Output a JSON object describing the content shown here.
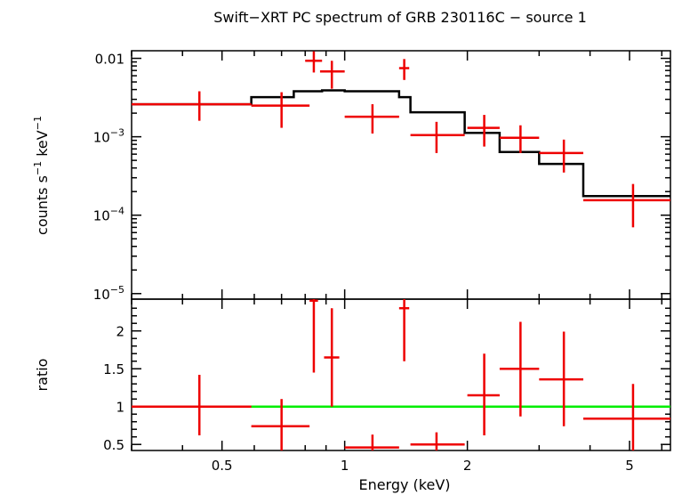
{
  "chart_data": [
    {
      "type": "scatter",
      "panel": "spectrum",
      "title": "Swift−XRT PC spectrum of GRB 230116C − source 1",
      "ylabel_parts": [
        "counts s",
        "−1",
        " keV",
        "−1"
      ],
      "xlabel": "Energy (keV)",
      "xscale": "log",
      "yscale": "log",
      "xlim": [
        0.3,
        6.3
      ],
      "ylim": [
        8.5e-06,
        0.0125
      ],
      "ytick_labels": [
        {
          "value": 0.01,
          "base": "0.01",
          "exp": ""
        },
        {
          "value": 0.001,
          "base": "10",
          "exp": "−3"
        },
        {
          "value": 0.0001,
          "base": "10",
          "exp": "−4"
        },
        {
          "value": 1e-05,
          "base": "10",
          "exp": "−5"
        }
      ],
      "data_points": [
        {
          "x": 0.44,
          "xlo": 0.3,
          "xhi": 0.59,
          "y": 0.0026,
          "ylo": 0.0016,
          "yhi": 0.0038
        },
        {
          "x": 0.7,
          "xlo": 0.59,
          "xhi": 0.82,
          "y": 0.0025,
          "ylo": 0.0013,
          "yhi": 0.0037
        },
        {
          "x": 0.84,
          "xlo": 0.8,
          "xhi": 0.88,
          "y": 0.0093,
          "ylo": 0.0066,
          "yhi": 0.0123
        },
        {
          "x": 0.93,
          "xlo": 0.87,
          "xhi": 1.0,
          "y": 0.0068,
          "ylo": 0.0041,
          "yhi": 0.0093
        },
        {
          "x": 1.17,
          "xlo": 1.0,
          "xhi": 1.36,
          "y": 0.0018,
          "ylo": 0.0011,
          "yhi": 0.0026
        },
        {
          "x": 1.4,
          "xlo": 1.36,
          "xhi": 1.44,
          "y": 0.0075,
          "ylo": 0.0053,
          "yhi": 0.0098
        },
        {
          "x": 1.68,
          "xlo": 1.45,
          "xhi": 1.97,
          "y": 0.00105,
          "ylo": 0.00062,
          "yhi": 0.00155
        },
        {
          "x": 2.2,
          "xlo": 2.0,
          "xhi": 2.4,
          "y": 0.0013,
          "ylo": 0.00075,
          "yhi": 0.0019
        },
        {
          "x": 2.7,
          "xlo": 2.4,
          "xhi": 3.0,
          "y": 0.00097,
          "ylo": 0.00062,
          "yhi": 0.0014
        },
        {
          "x": 3.45,
          "xlo": 3.0,
          "xhi": 3.85,
          "y": 0.00062,
          "ylo": 0.00035,
          "yhi": 0.00092
        },
        {
          "x": 5.1,
          "xlo": 3.85,
          "xhi": 6.3,
          "y": 0.000155,
          "ylo": 7e-05,
          "yhi": 0.00025
        }
      ],
      "model_step": [
        {
          "xlo": 0.3,
          "xhi": 0.59,
          "y": 0.0026
        },
        {
          "xlo": 0.59,
          "xhi": 0.75,
          "y": 0.0032
        },
        {
          "xlo": 0.75,
          "xhi": 0.88,
          "y": 0.0038
        },
        {
          "xlo": 0.88,
          "xhi": 1.0,
          "y": 0.0039
        },
        {
          "xlo": 1.0,
          "xhi": 1.36,
          "y": 0.0038
        },
        {
          "xlo": 1.36,
          "xhi": 1.45,
          "y": 0.0032
        },
        {
          "xlo": 1.45,
          "xhi": 1.97,
          "y": 0.00205
        },
        {
          "xlo": 1.97,
          "xhi": 2.4,
          "y": 0.00112
        },
        {
          "xlo": 2.4,
          "xhi": 3.0,
          "y": 0.00064
        },
        {
          "xlo": 3.0,
          "xhi": 3.85,
          "y": 0.00045
        },
        {
          "xlo": 3.85,
          "xhi": 6.3,
          "y": 0.000175
        }
      ],
      "colors": {
        "data": "#ee0000",
        "model": "#000000"
      }
    },
    {
      "type": "scatter",
      "panel": "ratio",
      "ylabel": "ratio",
      "xlabel": "Energy (keV)",
      "xscale": "log",
      "xlim": [
        0.3,
        6.3
      ],
      "ylim": [
        0.42,
        2.42
      ],
      "xtick_labels": [
        {
          "value": 0.5,
          "label": "0.5"
        },
        {
          "value": 1,
          "label": "1"
        },
        {
          "value": 2,
          "label": "2"
        },
        {
          "value": 5,
          "label": "5"
        }
      ],
      "ytick_labels": [
        {
          "value": 0.5,
          "label": "0.5"
        },
        {
          "value": 1,
          "label": "1"
        },
        {
          "value": 1.5,
          "label": "1.5"
        },
        {
          "value": 2,
          "label": "2"
        }
      ],
      "reference_line": 1.0,
      "data_points": [
        {
          "x": 0.44,
          "xlo": 0.3,
          "xhi": 0.59,
          "y": 1.0,
          "ylo": 0.62,
          "yhi": 1.42
        },
        {
          "x": 0.7,
          "xlo": 0.59,
          "xhi": 0.82,
          "y": 0.74,
          "ylo": 0.42,
          "yhi": 1.1
        },
        {
          "x": 0.84,
          "xlo": 0.82,
          "xhi": 0.86,
          "y": 2.4,
          "ylo": 1.45,
          "yhi": 2.42
        },
        {
          "x": 0.93,
          "xlo": 0.89,
          "xhi": 0.97,
          "y": 1.65,
          "ylo": 1.0,
          "yhi": 2.3
        },
        {
          "x": 1.17,
          "xlo": 1.0,
          "xhi": 1.36,
          "y": 0.46,
          "ylo": 0.42,
          "yhi": 0.63
        },
        {
          "x": 1.4,
          "xlo": 1.36,
          "xhi": 1.44,
          "y": 2.3,
          "ylo": 1.6,
          "yhi": 2.42
        },
        {
          "x": 1.68,
          "xlo": 1.45,
          "xhi": 1.97,
          "y": 0.5,
          "ylo": 0.42,
          "yhi": 0.66
        },
        {
          "x": 2.2,
          "xlo": 2.0,
          "xhi": 2.4,
          "y": 1.15,
          "ylo": 0.62,
          "yhi": 1.7
        },
        {
          "x": 2.7,
          "xlo": 2.4,
          "xhi": 3.0,
          "y": 1.5,
          "ylo": 0.87,
          "yhi": 2.12
        },
        {
          "x": 3.45,
          "xlo": 3.0,
          "xhi": 3.85,
          "y": 1.36,
          "ylo": 0.74,
          "yhi": 1.99
        },
        {
          "x": 5.1,
          "xlo": 3.85,
          "xhi": 6.3,
          "y": 0.84,
          "ylo": 0.42,
          "yhi": 1.3
        }
      ],
      "colors": {
        "data": "#ee0000",
        "reference": "#00ee00"
      }
    }
  ]
}
